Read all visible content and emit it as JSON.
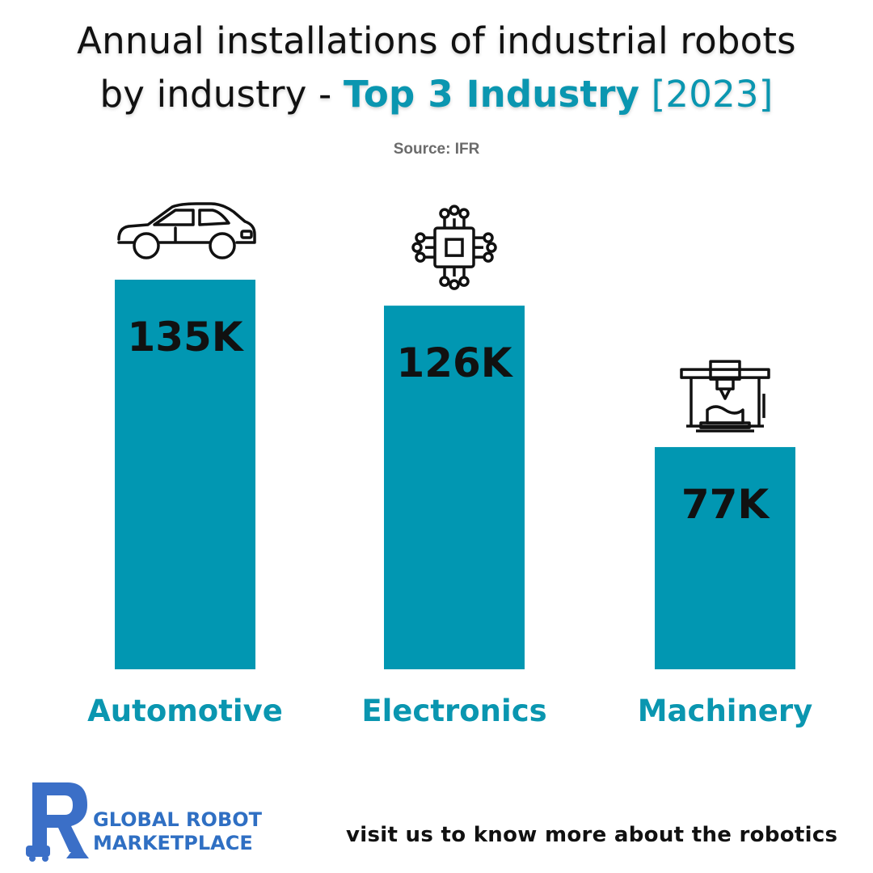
{
  "title": {
    "line1": "Annual installations of industrial robots",
    "line2_prefix": "by industry -",
    "highlight": "Top 3 Industry",
    "year": "[2023]"
  },
  "source": "Source: IFR",
  "colors": {
    "bar": "#0197b2",
    "accent": "#0a96b0",
    "brand": "#2f6fc3"
  },
  "chart_data": {
    "type": "bar",
    "categories": [
      "Automotive",
      "Electronics",
      "Machinery"
    ],
    "values": [
      135,
      126,
      77
    ],
    "value_labels": [
      "135K",
      "126K",
      "77K"
    ],
    "icons": [
      "car-icon",
      "chip-icon",
      "machine-icon"
    ],
    "ylim": [
      0,
      135
    ],
    "grid": false,
    "legend": "none"
  },
  "footer": {
    "brand_line1": "GLOBAL ROBOT",
    "brand_line2": "MARKETPLACE",
    "cta": "visit us to know more about the robotics"
  }
}
